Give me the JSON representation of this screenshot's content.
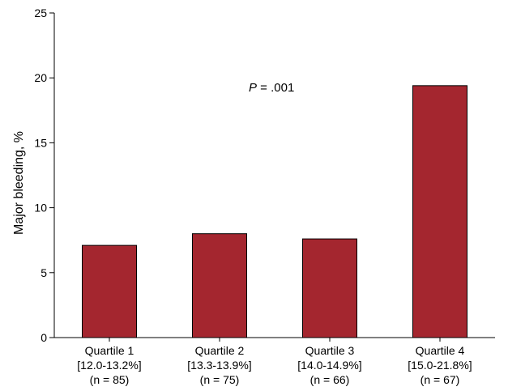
{
  "chart_data": {
    "type": "bar",
    "categories": [
      [
        "Quartile 1",
        "[12.0-13.2%]",
        "(n = 85)"
      ],
      [
        "Quartile 2",
        "[13.3-13.9%]",
        "(n = 75)"
      ],
      [
        "Quartile 3",
        "[14.0-14.9%]",
        "(n = 66)"
      ],
      [
        "Quartile 4",
        "[15.0-21.8%]",
        "(n = 67)"
      ]
    ],
    "values": [
      7.1,
      8.0,
      7.6,
      19.4
    ],
    "ylabel": "Major bleeding, %",
    "ylim": [
      0,
      25
    ],
    "yticks": [
      0,
      5,
      10,
      15,
      20,
      25
    ],
    "grid": false,
    "legend": "none",
    "bar_color": "#a4262f",
    "annotation": {
      "italic": "P",
      "rest": " = .001"
    }
  }
}
